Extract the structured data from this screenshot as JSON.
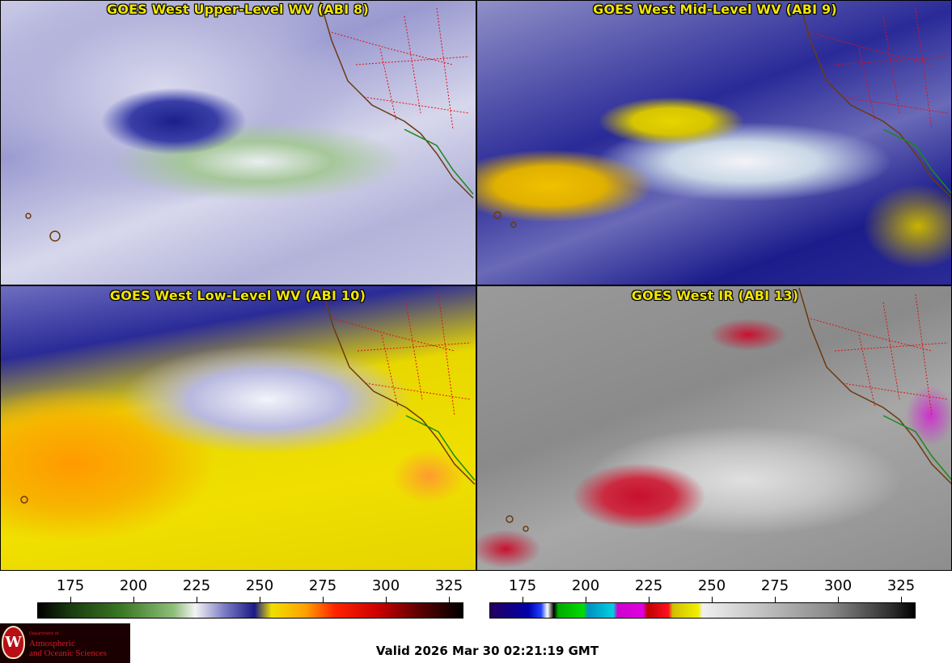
{
  "panels": {
    "upper_wv": {
      "title": "GOES West Upper-Level WV (ABI 8)"
    },
    "mid_wv": {
      "title": "GOES West Mid-Level WV (ABI 9)"
    },
    "low_wv": {
      "title": "GOES West Low-Level WV (ABI 10)"
    },
    "ir": {
      "title": "GOES West IR (ABI 13)"
    }
  },
  "colorbars": {
    "wv": {
      "ticks": [
        "175",
        "200",
        "225",
        "250",
        "275",
        "300",
        "325"
      ]
    },
    "ir": {
      "ticks": [
        "175",
        "200",
        "225",
        "250",
        "275",
        "300",
        "325"
      ]
    }
  },
  "logo": {
    "department": "Department of",
    "line1": "Atmospheric",
    "line2": "and Oceanic Sciences",
    "seal": "W"
  },
  "footer": {
    "valid_text": "Valid 2026 Mar 30 02:21:19 GMT"
  }
}
